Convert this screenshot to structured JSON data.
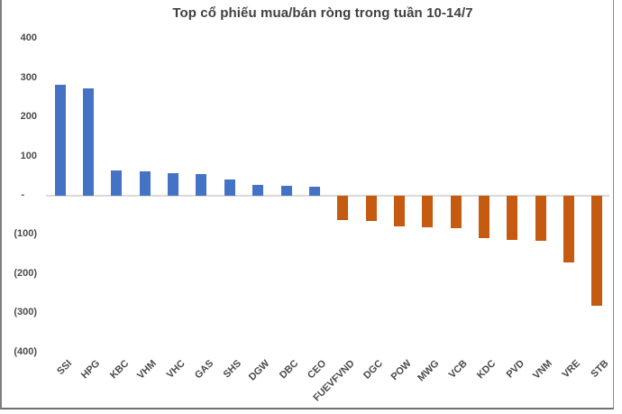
{
  "chart_data": {
    "type": "bar",
    "title": "Top cổ phiếu mua/bán ròng trong tuần 10-14/7",
    "categories": [
      "SSI",
      "HPG",
      "KBC",
      "VHM",
      "VHC",
      "GAS",
      "SHS",
      "DGW",
      "DBC",
      "CEO",
      "FUEVFVND",
      "DGC",
      "POW",
      "MWG",
      "VCB",
      "KDC",
      "PVD",
      "VNM",
      "VRE",
      "STB"
    ],
    "values": [
      283,
      275,
      65,
      63,
      57,
      55,
      42,
      28,
      26,
      22,
      -63,
      -65,
      -78,
      -80,
      -84,
      -109,
      -113,
      -116,
      -171,
      -282
    ],
    "xlabel": "",
    "ylabel": "",
    "ylim": [
      -400,
      400
    ],
    "ytick_interval": 100,
    "ytick_labels": [
      "400",
      "300",
      "200",
      "100",
      "-",
      "(100)",
      "(200)",
      "(300)",
      "(400)"
    ],
    "grid": false,
    "legend": "none",
    "positive_color": "#4472C4",
    "negative_color": "#C55A11",
    "axis_line_color": "#D9D9D9",
    "label_color": "#4A4A4A",
    "title_color": "#404040"
  }
}
